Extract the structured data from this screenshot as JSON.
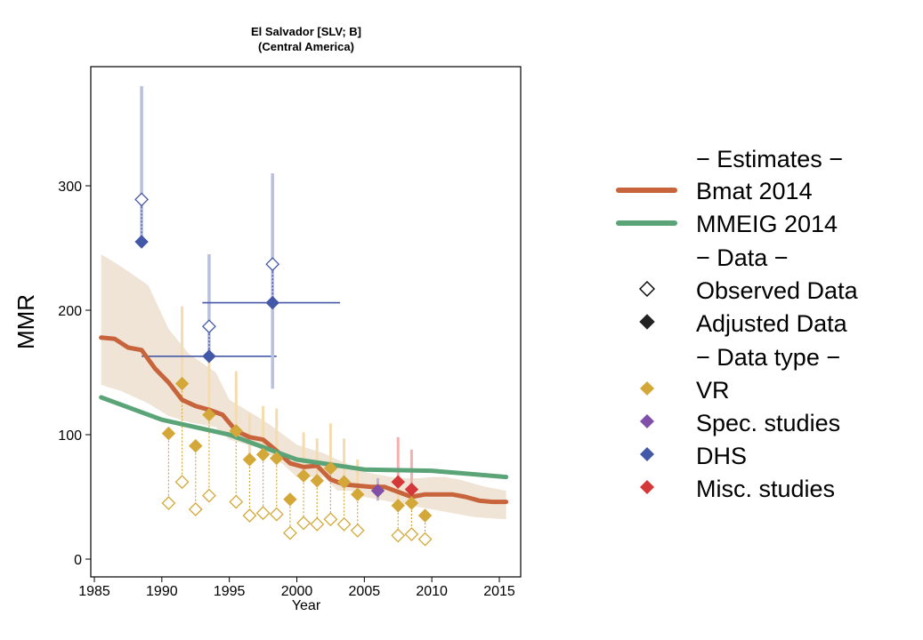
{
  "chart_data": {
    "type": "line",
    "title_line1": "El Salvador [SLV; B]",
    "title_line2": "(Central America)",
    "xlabel": "Year",
    "ylabel": "MMR",
    "xlim": [
      1985,
      2016
    ],
    "ylim": [
      -10,
      385
    ],
    "xticks": [
      1985,
      1990,
      1995,
      2000,
      2005,
      2010,
      2015
    ],
    "yticks": [
      0,
      100,
      200,
      300
    ],
    "colors": {
      "bmat": "#c8643c",
      "mmeig": "#5aa478",
      "band": "#f0e4d6",
      "vr": "#d4a838",
      "vr_bar": "#f4dcb0",
      "spec": "#8050a8",
      "dhs": "#4458a8",
      "dhs_bar": "#b8c0e0",
      "misc": "#d43838",
      "misc_bar": "#f4b0b0"
    },
    "series": [
      {
        "name": "Bmat 2014",
        "x": [
          1985.5,
          1986.5,
          1987.5,
          1988.5,
          1989.5,
          1990.5,
          1991.5,
          1992.5,
          1993.5,
          1994.5,
          1995.5,
          1996.5,
          1997.5,
          1998.5,
          1999.5,
          2000.5,
          2001.5,
          2002.5,
          2003.5,
          2004.5,
          2005.5,
          2006.5,
          2007.5,
          2008.5,
          2009.5,
          2010.5,
          2011.5,
          2012.5,
          2013.5,
          2014.5,
          2015.5
        ],
        "values": [
          178,
          177,
          170,
          168,
          153,
          142,
          128,
          123,
          120,
          116,
          103,
          98,
          96,
          87,
          77,
          74,
          75,
          64,
          60,
          59,
          58,
          58,
          54,
          50,
          52,
          52,
          52,
          50,
          47,
          46,
          46
        ]
      },
      {
        "name": "MMEIG 2014",
        "x": [
          1985.5,
          1990,
          1995,
          2000,
          2005,
          2010,
          2015.5
        ],
        "values": [
          130,
          112,
          100,
          80,
          72,
          71,
          66
        ]
      }
    ],
    "band": {
      "x": [
        1985.5,
        1987,
        1989,
        1990.5,
        1992,
        1994,
        1995,
        1997,
        1998,
        1999,
        2000,
        2002,
        2003,
        2004,
        2005,
        2007,
        2008,
        2009,
        2010,
        2011,
        2012,
        2013,
        2014,
        2015.5
      ],
      "upper": [
        245,
        235,
        220,
        185,
        165,
        150,
        128,
        115,
        108,
        100,
        92,
        85,
        80,
        75,
        70,
        66,
        65,
        65,
        66,
        66,
        64,
        61,
        58,
        55
      ],
      "lower": [
        140,
        135,
        125,
        115,
        110,
        106,
        96,
        90,
        84,
        76,
        66,
        66,
        55,
        55,
        50,
        46,
        44,
        42,
        40,
        38,
        36,
        34,
        33,
        32
      ]
    },
    "vr_points": [
      {
        "year": 1990.5,
        "observed": 45,
        "adjusted": 101,
        "upper": null
      },
      {
        "year": 1991.5,
        "observed": 62,
        "adjusted": 141,
        "upper": 203
      },
      {
        "year": 1992.5,
        "observed": 40,
        "adjusted": 91,
        "upper": null
      },
      {
        "year": 1993.5,
        "observed": 51,
        "adjusted": 116,
        "upper": 166
      },
      {
        "year": 1995.5,
        "observed": 46,
        "adjusted": 103,
        "upper": 151
      },
      {
        "year": 1996.5,
        "observed": 35,
        "adjusted": 80,
        "upper": 117
      },
      {
        "year": 1997.5,
        "observed": 37,
        "adjusted": 84,
        "upper": 123
      },
      {
        "year": 1998.5,
        "observed": 36,
        "adjusted": 81,
        "upper": 121
      },
      {
        "year": 1999.5,
        "observed": 21,
        "adjusted": 48,
        "upper": null
      },
      {
        "year": 2000.5,
        "observed": 29,
        "adjusted": 67,
        "upper": 102
      },
      {
        "year": 2001.5,
        "observed": 28,
        "adjusted": 63,
        "upper": 97
      },
      {
        "year": 2002.5,
        "observed": 32,
        "adjusted": 73,
        "upper": 109
      },
      {
        "year": 2003.5,
        "observed": 28,
        "adjusted": 62,
        "upper": 97
      },
      {
        "year": 2004.5,
        "observed": 23,
        "adjusted": 52,
        "upper": 80
      },
      {
        "year": 2007.5,
        "observed": 19,
        "adjusted": 43,
        "upper": 67
      },
      {
        "year": 2008.5,
        "observed": 20,
        "adjusted": 45,
        "upper": 69
      },
      {
        "year": 2009.5,
        "observed": 16,
        "adjusted": 35,
        "upper": null
      }
    ],
    "dhs_points": [
      {
        "year": 1988.5,
        "observed": 289,
        "adjusted": 255,
        "lower": null,
        "upper": 380,
        "start": 1988.5,
        "end": 1988.5
      },
      {
        "year": 1993.5,
        "observed": 187,
        "adjusted": 163,
        "lower": null,
        "upper": 245,
        "start": 1988.5,
        "end": 1998.5
      },
      {
        "year": 1998.2,
        "observed": 237,
        "adjusted": 206,
        "lower": 137,
        "upper": 310,
        "start": 1993,
        "end": 2003.2
      }
    ],
    "spec_points": [
      {
        "year": 2006,
        "adjusted": 55,
        "lower": 47,
        "upper": 65
      }
    ],
    "misc_points": [
      {
        "year": 2007.5,
        "adjusted": 62,
        "lower": null,
        "upper": 98
      },
      {
        "year": 2008.5,
        "adjusted": 56,
        "lower": null,
        "upper": 88
      }
    ]
  },
  "legend": {
    "section_estimates": "− Estimates −",
    "bmat": "Bmat 2014",
    "mmeig": "MMEIG 2014",
    "section_data": "− Data −",
    "observed": "Observed Data",
    "adjusted": "Adjusted Data",
    "section_type": "− Data type −",
    "vr": "VR",
    "spec": "Spec. studies",
    "dhs": "DHS",
    "misc": "Misc. studies"
  }
}
